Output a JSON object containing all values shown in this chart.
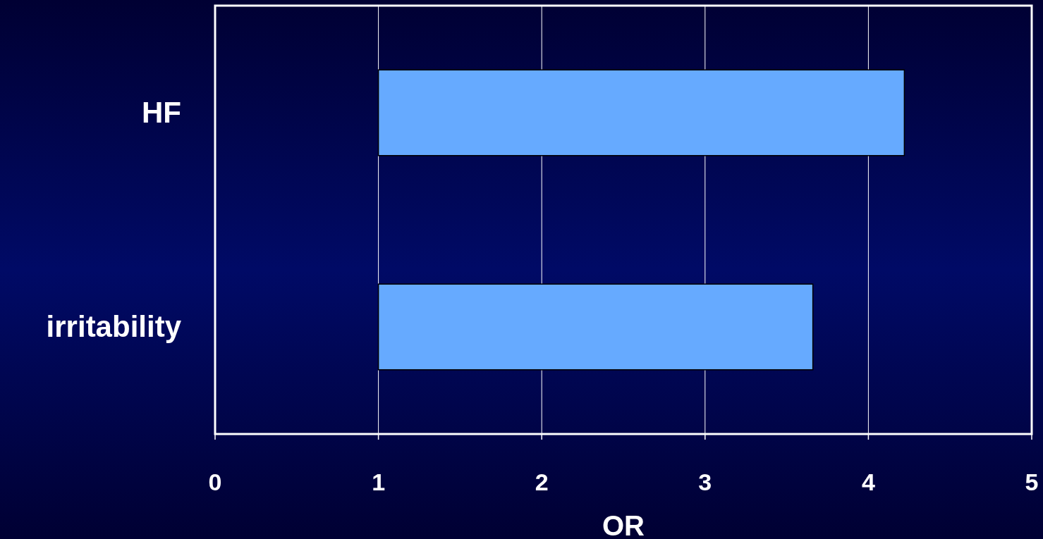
{
  "chart_data": {
    "type": "bar",
    "orientation": "horizontal",
    "categories": [
      "HF",
      "irritability"
    ],
    "values": [
      3.22,
      2.66
    ],
    "base": [
      1,
      1
    ],
    "color": "#66aaff",
    "xlim": [
      0,
      5
    ],
    "xticks": [
      0,
      1,
      2,
      3,
      4,
      5
    ],
    "xlabel": "OR",
    "grid": "x"
  }
}
